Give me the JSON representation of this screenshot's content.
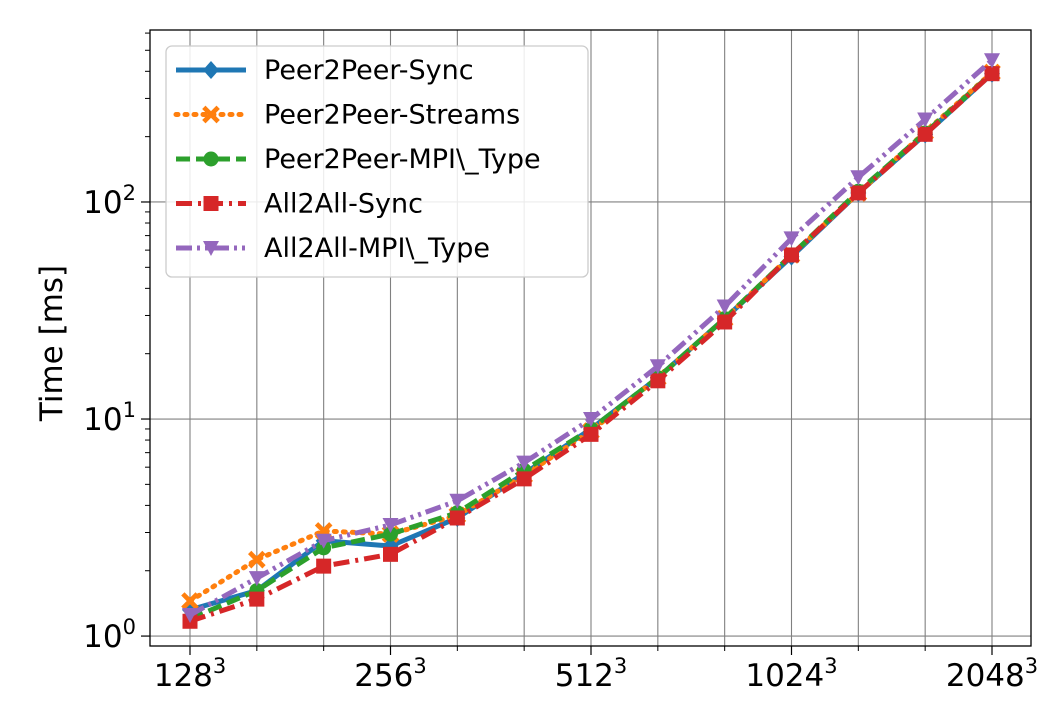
{
  "chart_data": {
    "type": "line",
    "ylabel": "Time [ms]",
    "xlabel": "",
    "y_scale": "log",
    "ylim": [
      0.9,
      620
    ],
    "grid": true,
    "legend_position": "top-left",
    "x_major_ticks": [
      {
        "index": 0,
        "base": "128",
        "exp": "3"
      },
      {
        "index": 3,
        "base": "256",
        "exp": "3"
      },
      {
        "index": 6,
        "base": "512",
        "exp": "3"
      },
      {
        "index": 9,
        "base": "1024",
        "exp": "3"
      },
      {
        "index": 12,
        "base": "2048",
        "exp": "3"
      }
    ],
    "x_minor_ticks": [
      1,
      2,
      4,
      5,
      7,
      8,
      10,
      11
    ],
    "y_ticks": [
      {
        "value": 1,
        "base": "10",
        "exp": "0"
      },
      {
        "value": 10,
        "base": "10",
        "exp": "1"
      },
      {
        "value": 100,
        "base": "10",
        "exp": "2"
      }
    ],
    "series": [
      {
        "name": "Peer2Peer-Sync",
        "color": "#1f77b4",
        "marker": "diamond",
        "dash": "solid",
        "values": [
          1.32,
          1.62,
          2.75,
          2.6,
          3.5,
          5.6,
          9.0,
          15.5,
          29.0,
          56.0,
          110.0,
          205.0,
          390.0
        ]
      },
      {
        "name": "Peer2Peer-Streams",
        "color": "#ff7f0e",
        "marker": "x",
        "dash": "dotted",
        "values": [
          1.45,
          2.25,
          3.05,
          2.95,
          3.6,
          5.5,
          8.8,
          15.5,
          29.0,
          57.0,
          110.0,
          210.0,
          395.0
        ]
      },
      {
        "name": "Peer2Peer-MPI\\_Type",
        "color": "#2ca02c",
        "marker": "circle",
        "dash": "dashed",
        "values": [
          1.2,
          1.62,
          2.55,
          2.95,
          3.7,
          5.8,
          9.0,
          15.5,
          29.0,
          57.0,
          112.0,
          208.0,
          392.0
        ]
      },
      {
        "name": "All2All-Sync",
        "color": "#d62728",
        "marker": "square",
        "dash": "dashdot",
        "values": [
          1.17,
          1.48,
          2.1,
          2.38,
          3.5,
          5.3,
          8.5,
          15.0,
          28.0,
          57.0,
          110.0,
          205.0,
          390.0
        ]
      },
      {
        "name": "All2All-MPI\\_Type",
        "color": "#9467bd",
        "marker": "triangle-down",
        "dash": "dashdotdot",
        "values": [
          1.25,
          1.85,
          2.75,
          3.25,
          4.2,
          6.3,
          10.0,
          17.5,
          33.0,
          68.0,
          130.0,
          240.0,
          450.0
        ]
      }
    ]
  }
}
